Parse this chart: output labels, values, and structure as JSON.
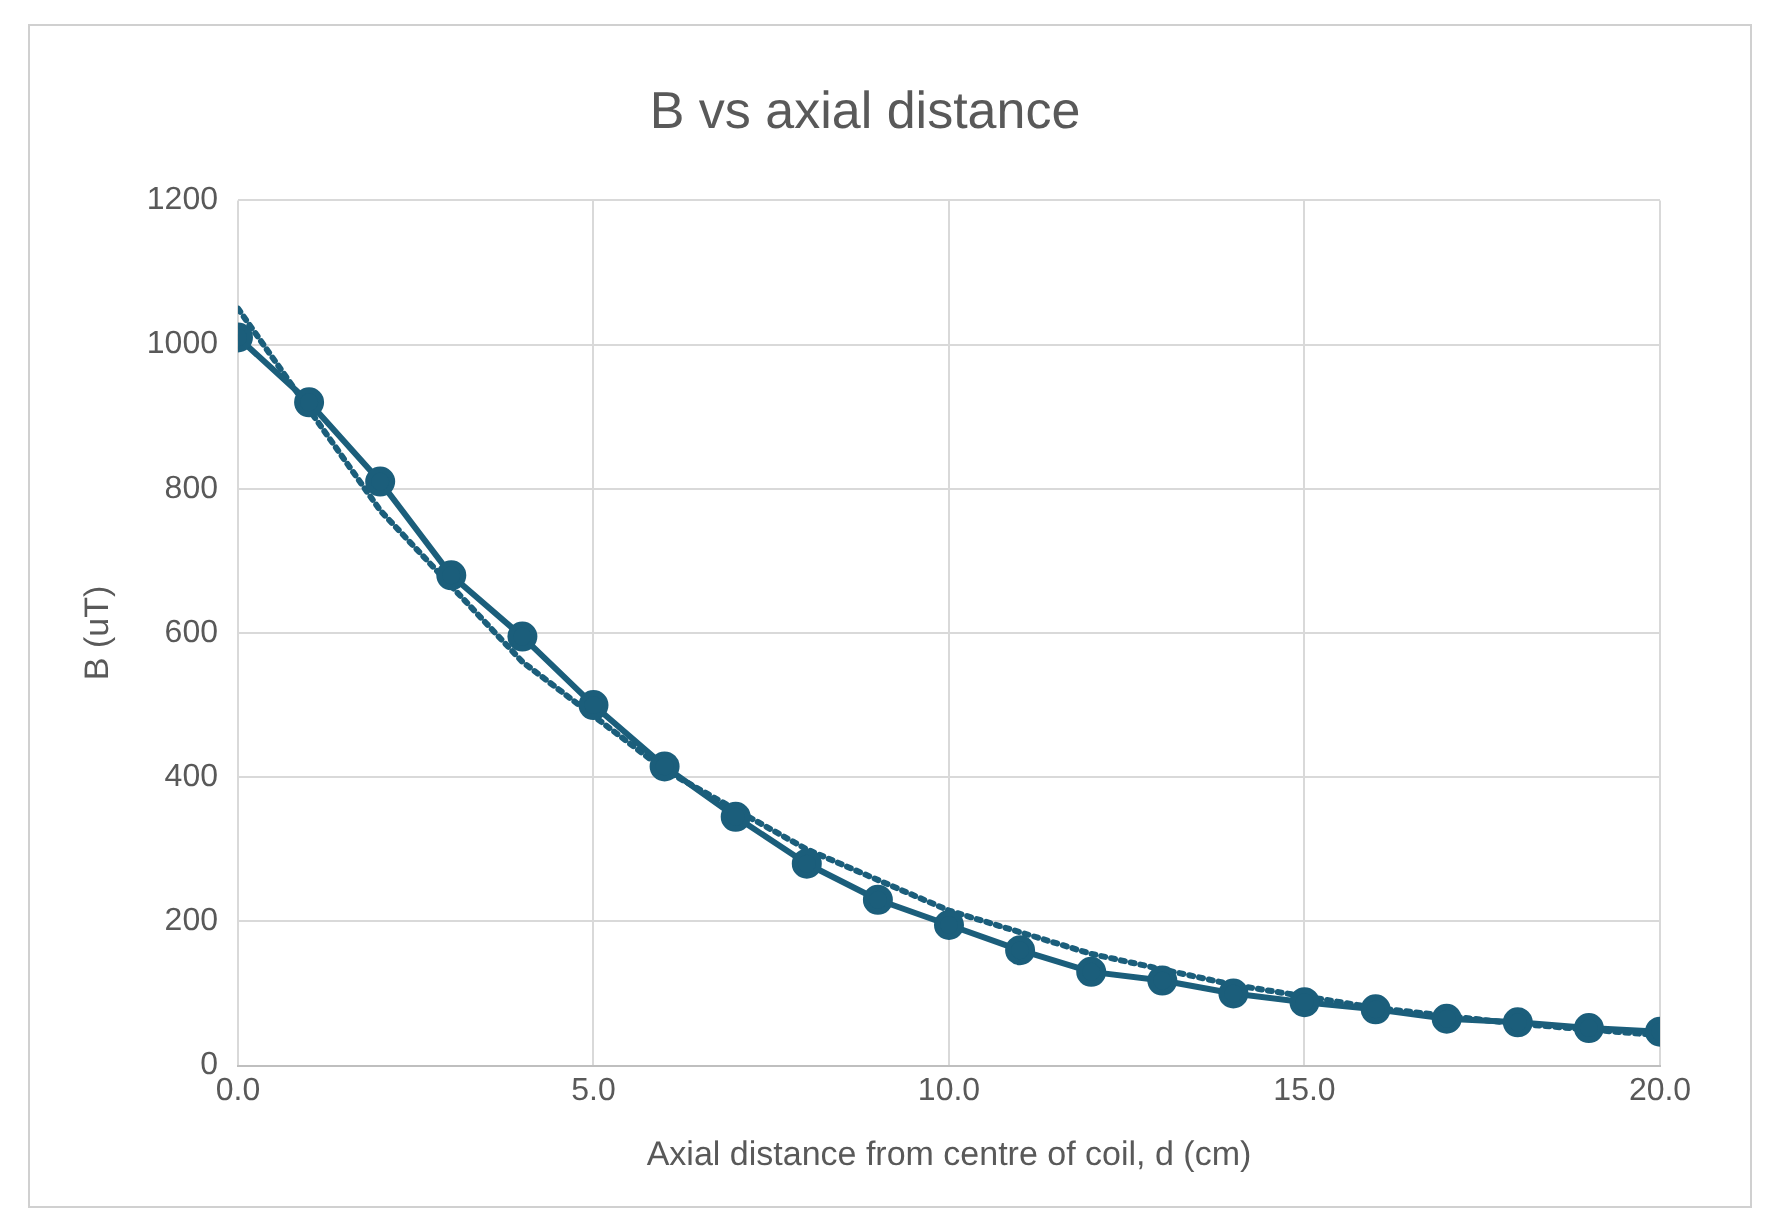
{
  "chart_data": {
    "type": "line",
    "title": "B vs axial distance",
    "xlabel": "Axial distance from centre of coil, d (cm)",
    "ylabel": "B (uT)",
    "xlim": [
      0,
      20
    ],
    "xticks": [
      {
        "value": 0,
        "label": "0.0"
      },
      {
        "value": 5,
        "label": "5.0"
      },
      {
        "value": 10,
        "label": "10.0"
      },
      {
        "value": 15,
        "label": "15.0"
      },
      {
        "value": 20,
        "label": "20.0"
      }
    ],
    "ylim": [
      0,
      1200
    ],
    "yticks": [
      0,
      200,
      400,
      600,
      800,
      1000,
      1200
    ],
    "grid": true,
    "legend": false,
    "series": [
      {
        "type": "line",
        "color": "#1b5e7b",
        "marker": "circle",
        "line_style": "solid",
        "x": [
          0,
          1,
          2,
          3,
          4,
          5,
          6,
          7,
          8,
          9,
          10,
          11,
          12,
          13,
          14,
          15,
          16,
          17,
          18,
          19,
          20
        ],
        "values": [
          1010,
          920,
          810,
          680,
          595,
          500,
          415,
          345,
          280,
          230,
          195,
          160,
          130,
          118,
          100,
          88,
          78,
          65,
          60,
          52,
          47
        ]
      },
      {
        "type": "line",
        "color": "#1b5e7b",
        "marker": "none",
        "line_style": "dotted",
        "x": [
          0,
          2,
          4,
          6,
          8,
          10,
          12,
          14,
          16,
          18,
          20
        ],
        "values": [
          1050,
          770,
          560,
          410,
          300,
          215,
          155,
          112,
          80,
          58,
          42
        ]
      }
    ]
  }
}
